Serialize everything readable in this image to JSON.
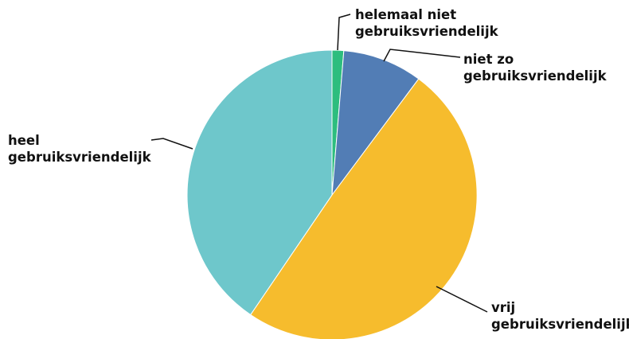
{
  "chart_data": {
    "type": "pie",
    "start_angle": "12 o'clock",
    "direction": "clockwise",
    "legend": "none",
    "slices": [
      {
        "label": "helemaal niet gebruiksvriendelijk",
        "lines": [
          "helemaal niet",
          "gebruiksvriendelijk"
        ],
        "value": 1.3,
        "color": "#2dbd7e"
      },
      {
        "label": "niet zo gebruiksvriendelijk",
        "lines": [
          "niet zo",
          "gebruiksvriendelijk"
        ],
        "value": 8.9,
        "color": "#527db5"
      },
      {
        "label": "vrij gebruiksvriendelijk",
        "lines": [
          "vrij",
          "gebruiksvriendelijk"
        ],
        "value": 49.3,
        "color": "#f6bc2d"
      },
      {
        "label": "heel gebruiksvriendelijk",
        "lines": [
          "heel",
          "gebruiksvriendelijk"
        ],
        "value": 40.5,
        "color": "#6ec7cb"
      }
    ]
  }
}
